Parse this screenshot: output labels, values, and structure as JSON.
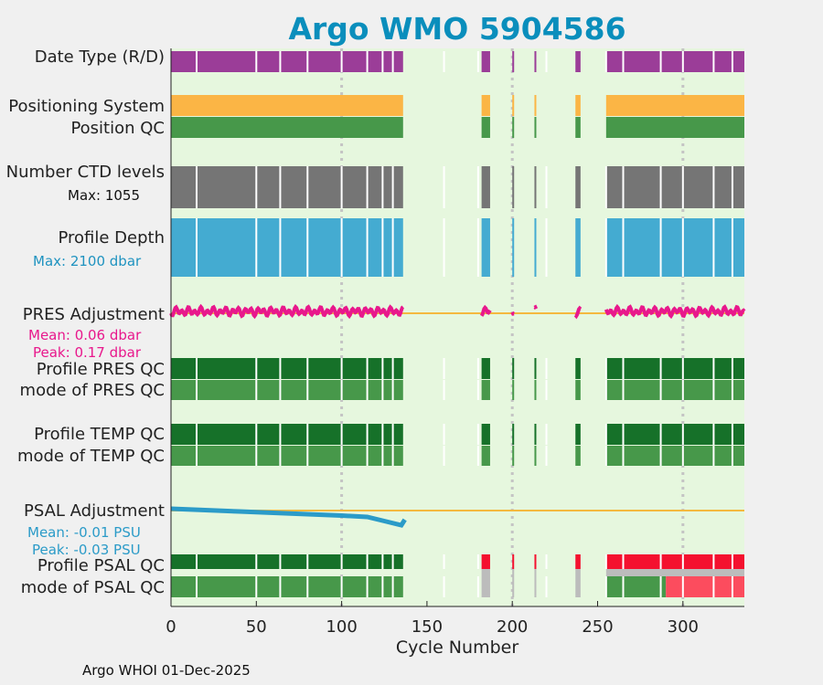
{
  "title": "Argo WMO 5904586",
  "footer": "Argo WHOI 01-Dec-2025",
  "labels": {
    "date_type": "Date Type (R/D)",
    "positioning_system": "Positioning System",
    "position_qc": "Position QC",
    "ctd_levels": "Number CTD levels",
    "ctd_max": "Max: 1055",
    "profile_depth": "Profile Depth",
    "depth_max": "Max: 2100 dbar",
    "pres_adj": "PRES Adjustment",
    "pres_mean": "Mean: 0.06 dbar",
    "pres_peak": "Peak: 0.17 dbar",
    "pres_qc": "Profile PRES QC",
    "pres_mode": "mode of PRES QC",
    "temp_qc": "Profile TEMP QC",
    "temp_mode": "mode of TEMP QC",
    "psal_adj": "PSAL Adjustment",
    "psal_mean": "Mean: -0.01 PSU",
    "psal_peak": "Peak: -0.03 PSU",
    "psal_qc": "Profile PSAL QC",
    "psal_mode": "mode of PSAL QC"
  },
  "colors": {
    "title": "#0a8ebc",
    "panel_bg": "#e6f7de",
    "date_type": "#9b3d98",
    "positioning": "#fbb545",
    "qc_good": "#47984a",
    "qc_dark": "#167129",
    "ctd": "#757575",
    "depth": "#44abd1",
    "pres_adj": "#e8188c",
    "psal_adj": "#2b9bc8",
    "zero_line": "#f4b93f",
    "qc_bad_red": "#f4112f",
    "qc_mode_red": "#fc4c5e",
    "qc_gray": "#bcbcbc",
    "grid": "#c4c4c4"
  },
  "chart_data": {
    "type": "timeline",
    "xlabel": "Cycle Number",
    "xlim": [
      0,
      336
    ],
    "xticks": [
      0,
      50,
      100,
      150,
      200,
      250,
      300
    ],
    "grid_x": [
      100,
      200,
      300
    ],
    "segments": [
      [
        0,
        136
      ],
      [
        182,
        187
      ],
      [
        200,
        201
      ],
      [
        213,
        214
      ],
      [
        237,
        240
      ],
      [
        255,
        336
      ]
    ],
    "gaps_in_segments": [
      15,
      50,
      64,
      80,
      100,
      115,
      124,
      130,
      160,
      180,
      220,
      255,
      265,
      287,
      300,
      318,
      329
    ],
    "rows": [
      {
        "id": "date_type",
        "name": "Date Type (R/D)",
        "color_key": "date_type"
      },
      {
        "id": "positioning_system",
        "name": "Positioning System",
        "color_key": "positioning"
      },
      {
        "id": "position_qc",
        "name": "Position QC",
        "color_key": "qc_good"
      },
      {
        "id": "ctd_levels",
        "name": "Number CTD levels",
        "color_key": "ctd",
        "max": 1055
      },
      {
        "id": "profile_depth",
        "name": "Profile Depth",
        "color_key": "depth",
        "max": 2100
      },
      {
        "id": "pres_adjustment",
        "name": "PRES Adjustment",
        "color_key": "pres_adj",
        "mean": 0.06,
        "peak": 0.17
      },
      {
        "id": "pres_qc",
        "name": "Profile PRES QC",
        "color_key": "qc_dark"
      },
      {
        "id": "pres_mode",
        "name": "mode of PRES QC",
        "color_key": "qc_good"
      },
      {
        "id": "temp_qc",
        "name": "Profile TEMP QC",
        "color_key": "qc_dark"
      },
      {
        "id": "temp_mode",
        "name": "mode of TEMP QC",
        "color_key": "qc_good"
      },
      {
        "id": "psal_adjustment",
        "name": "PSAL Adjustment",
        "color_key": "psal_adj",
        "mean": -0.01,
        "peak": -0.03
      },
      {
        "id": "psal_qc",
        "name": "Profile PSAL QC",
        "color_key": "qc_dark"
      },
      {
        "id": "psal_mode",
        "name": "mode of PSAL QC",
        "color_key": "qc_good"
      }
    ],
    "psal_adjustment_series": {
      "x": [
        0,
        20,
        40,
        60,
        80,
        100,
        115,
        125,
        135,
        137
      ],
      "y": [
        0.0,
        -0.001,
        -0.002,
        -0.003,
        -0.004,
        -0.005,
        -0.006,
        -0.009,
        -0.012,
        -0.008
      ]
    },
    "psal_qc_bad_from": 182,
    "psal_mode_red_from": 290
  }
}
